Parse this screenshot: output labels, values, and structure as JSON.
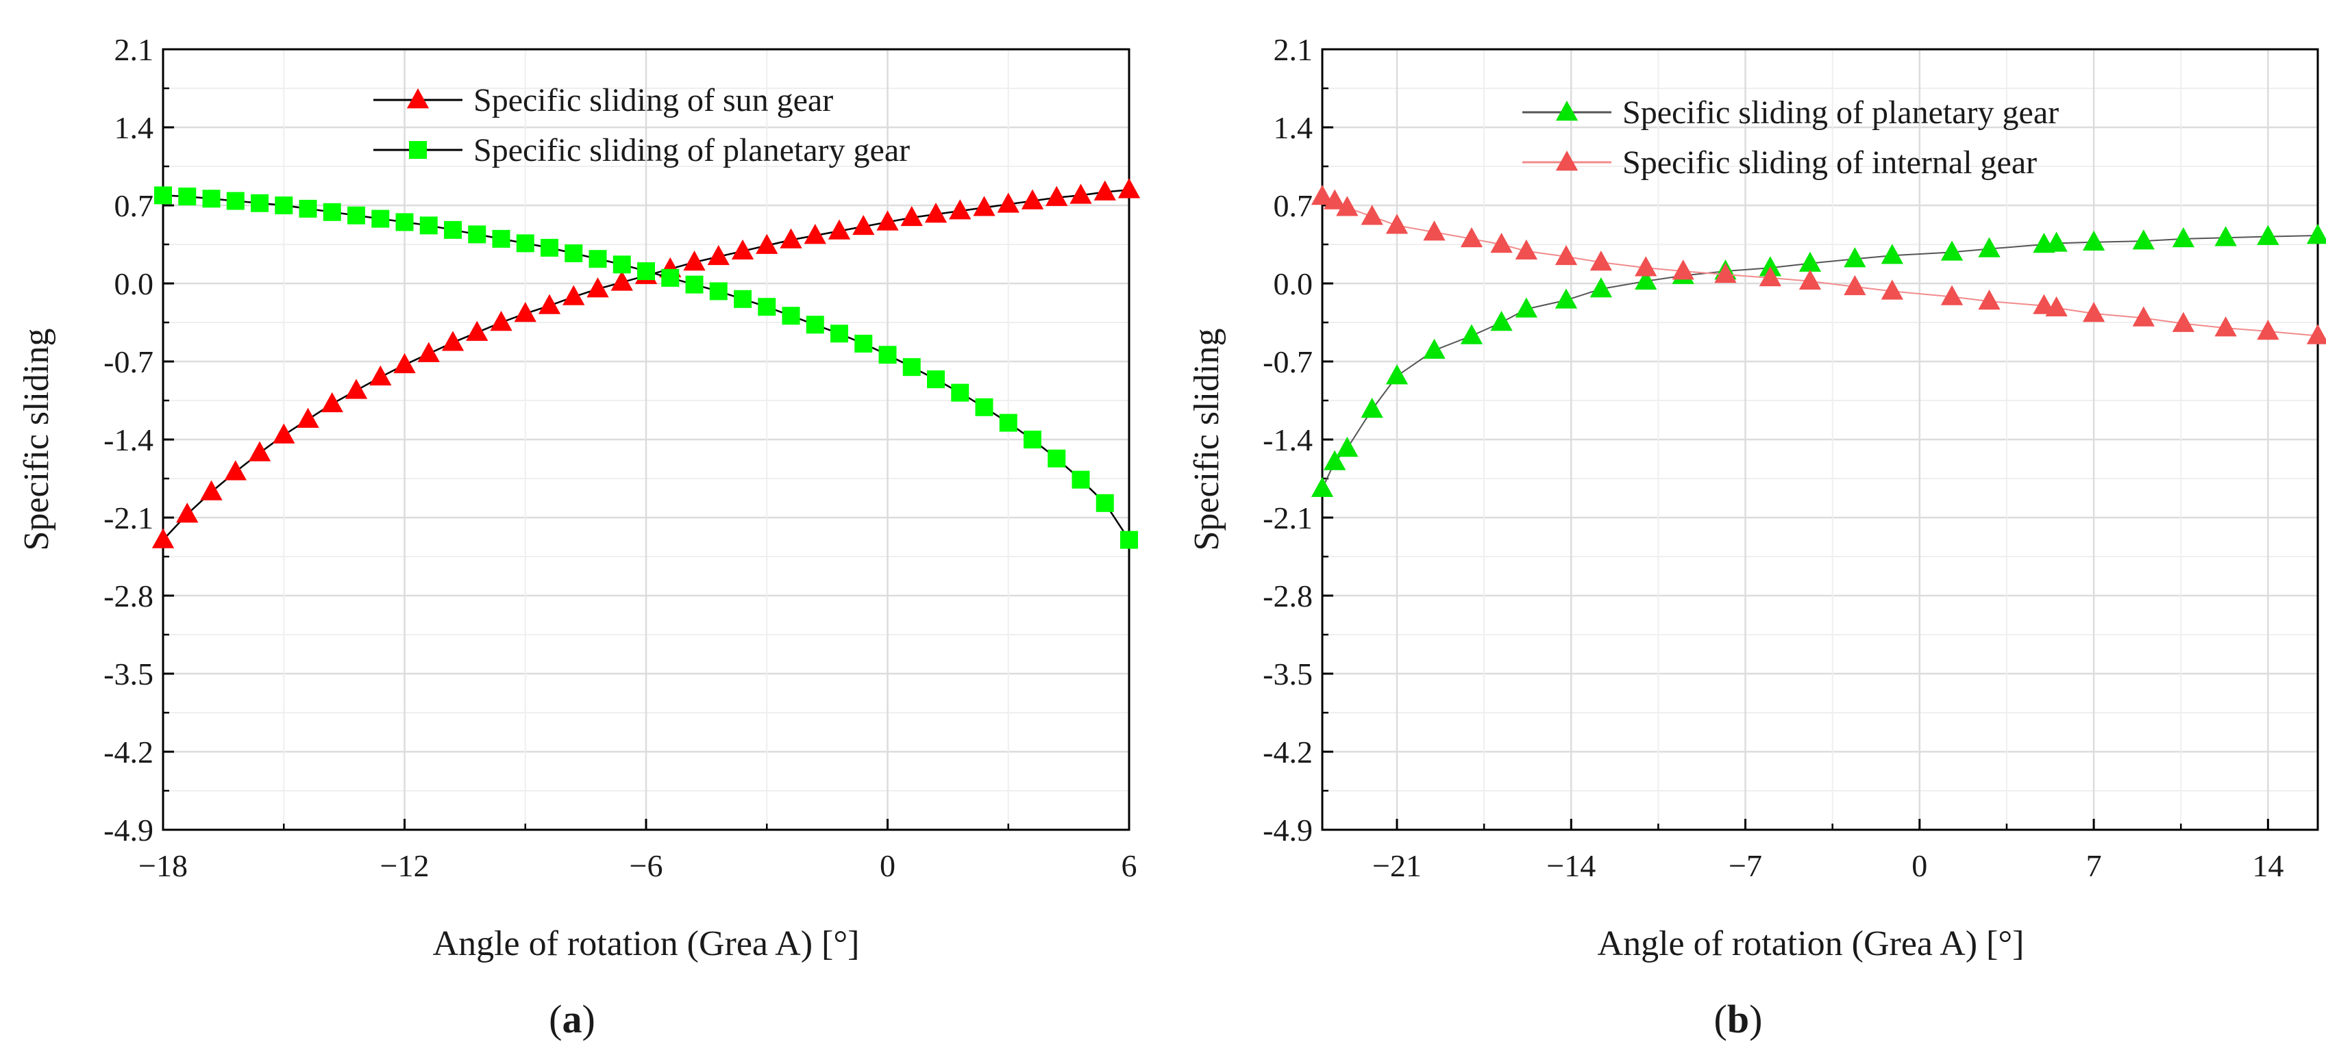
{
  "chart_data": [
    {
      "type": "line",
      "panel_label": "(a)",
      "xlabel": "Angle of rotation (Grea A)  [°]",
      "ylabel": "Specific sliding",
      "xlim": [
        -18,
        6
      ],
      "ylim": [
        -4.9,
        2.1
      ],
      "xticks": [
        "−18",
        "−12",
        "−6",
        "0",
        "6"
      ],
      "xtick_values": [
        -18,
        -12,
        -6,
        0,
        6
      ],
      "yticks": [
        "2.1",
        "1.4",
        "0.7",
        "0.0",
        "-0.7",
        "-1.4",
        "-2.1",
        "-2.8",
        "-3.5",
        "-4.2",
        "-4.9"
      ],
      "ytick_values": [
        2.1,
        1.4,
        0.7,
        0.0,
        -0.7,
        -1.4,
        -2.1,
        -2.8,
        -3.5,
        -4.2,
        -4.9
      ],
      "grid": true,
      "legend_position": "top-center",
      "series": [
        {
          "name": "Specific sliding of sun gear",
          "color": "#ff0000",
          "line_color": "#000000",
          "marker": "triangle",
          "x": [
            -18,
            -17.4,
            -16.8,
            -16.2,
            -15.6,
            -15,
            -14.4,
            -13.8,
            -13.2,
            -12.6,
            -12,
            -11.4,
            -10.8,
            -10.2,
            -9.6,
            -9,
            -8.4,
            -7.8,
            -7.2,
            -6.6,
            -6,
            -5.4,
            -4.8,
            -4.2,
            -3.6,
            -3,
            -2.4,
            -1.8,
            -1.2,
            -0.6,
            0,
            0.6,
            1.2,
            1.8,
            2.4,
            3,
            3.6,
            4.2,
            4.8,
            5.4,
            6
          ],
          "y": [
            -2.3,
            -2.07,
            -1.87,
            -1.69,
            -1.52,
            -1.36,
            -1.22,
            -1.08,
            -0.96,
            -0.84,
            -0.73,
            -0.63,
            -0.53,
            -0.44,
            -0.35,
            -0.27,
            -0.2,
            -0.12,
            -0.05,
            0.01,
            0.07,
            0.13,
            0.19,
            0.24,
            0.29,
            0.34,
            0.39,
            0.43,
            0.47,
            0.51,
            0.55,
            0.59,
            0.62,
            0.65,
            0.68,
            0.71,
            0.74,
            0.77,
            0.79,
            0.82,
            0.84
          ]
        },
        {
          "name": "Specific sliding of planetary gear",
          "color": "#00ff00",
          "line_color": "#000000",
          "marker": "square",
          "x": [
            -18,
            -17.4,
            -16.8,
            -16.2,
            -15.6,
            -15,
            -14.4,
            -13.8,
            -13.2,
            -12.6,
            -12,
            -11.4,
            -10.8,
            -10.2,
            -9.6,
            -9,
            -8.4,
            -7.8,
            -7.2,
            -6.6,
            -6,
            -5.4,
            -4.8,
            -4.2,
            -3.6,
            -3,
            -2.4,
            -1.8,
            -1.2,
            -0.6,
            0,
            0.6,
            1.2,
            1.8,
            2.4,
            3,
            3.6,
            4.2,
            4.8,
            5.4,
            6
          ],
          "y": [
            0.79,
            0.78,
            0.76,
            0.74,
            0.72,
            0.7,
            0.67,
            0.64,
            0.61,
            0.58,
            0.55,
            0.52,
            0.48,
            0.44,
            0.4,
            0.36,
            0.32,
            0.27,
            0.22,
            0.17,
            0.11,
            0.05,
            -0.01,
            -0.07,
            -0.14,
            -0.21,
            -0.29,
            -0.37,
            -0.45,
            -0.54,
            -0.64,
            -0.75,
            -0.86,
            -0.98,
            -1.11,
            -1.25,
            -1.4,
            -1.57,
            -1.76,
            -1.97,
            -2.3
          ]
        }
      ]
    },
    {
      "type": "line",
      "panel_label": "(b)",
      "xlabel": "Angle of rotation (Grea A) [°]",
      "ylabel": "Specific sliding",
      "xlim": [
        -24,
        16
      ],
      "ylim": [
        -4.9,
        2.1
      ],
      "xticks": [
        "−21",
        "−14",
        "−7",
        "0",
        "7",
        "14"
      ],
      "xtick_values": [
        -21,
        -14,
        -7,
        0,
        7,
        14
      ],
      "yticks": [
        "2.1",
        "1.4",
        "0.7",
        "0.0",
        "-0.7",
        "-1.4",
        "-2.1",
        "-2.8",
        "-3.5",
        "-4.2",
        "-4.9"
      ],
      "ytick_values": [
        2.1,
        1.4,
        0.7,
        0.0,
        -0.7,
        -1.4,
        -2.1,
        -2.8,
        -3.5,
        -4.2,
        -4.9
      ],
      "grid": true,
      "legend_position": "top-center",
      "series": [
        {
          "name": "Specific sliding of planetary gear",
          "color": "#00e600",
          "line_color": "#555555",
          "marker": "triangle",
          "x": [
            -24,
            -23.5,
            -23,
            -22,
            -21,
            -19.5,
            -18,
            -16.8,
            -15.8,
            -14.2,
            -12.8,
            -11,
            -9.5,
            -7.8,
            -6,
            -4.4,
            -2.6,
            -1.1,
            1.3,
            2.8,
            5,
            5.5,
            7,
            9,
            10.6,
            12.3,
            14,
            16
          ],
          "y": [
            -1.84,
            -1.6,
            -1.48,
            -1.13,
            -0.83,
            -0.6,
            -0.47,
            -0.35,
            -0.23,
            -0.15,
            -0.05,
            0.02,
            0.07,
            0.11,
            0.14,
            0.18,
            0.22,
            0.25,
            0.28,
            0.31,
            0.35,
            0.36,
            0.37,
            0.38,
            0.4,
            0.41,
            0.42,
            0.43
          ]
        },
        {
          "name": "Specific sliding of internal gear",
          "color": "#f05050",
          "line_color": "#f28b8b",
          "marker": "triangle",
          "x": [
            -24,
            -23.5,
            -23,
            -22,
            -21,
            -19.5,
            -18,
            -16.8,
            -15.8,
            -14.2,
            -12.8,
            -11,
            -9.5,
            -7.8,
            -6,
            -4.4,
            -2.6,
            -1.1,
            1.3,
            2.8,
            5,
            5.5,
            7,
            9,
            10.6,
            12.3,
            14,
            16
          ],
          "y": [
            0.78,
            0.74,
            0.68,
            0.6,
            0.52,
            0.46,
            0.4,
            0.35,
            0.29,
            0.24,
            0.19,
            0.14,
            0.11,
            0.08,
            0.05,
            0.02,
            -0.03,
            -0.07,
            -0.12,
            -0.16,
            -0.2,
            -0.22,
            -0.27,
            -0.31,
            -0.36,
            -0.4,
            -0.43,
            -0.47
          ]
        }
      ]
    }
  ]
}
